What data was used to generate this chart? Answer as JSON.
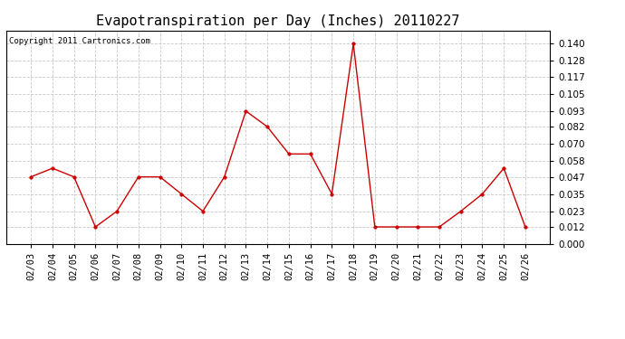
{
  "title": "Evapotranspiration per Day (Inches) 20110227",
  "copyright": "Copyright 2011 Cartronics.com",
  "dates": [
    "02/03",
    "02/04",
    "02/05",
    "02/06",
    "02/07",
    "02/08",
    "02/09",
    "02/10",
    "02/11",
    "02/12",
    "02/13",
    "02/14",
    "02/15",
    "02/16",
    "02/17",
    "02/18",
    "02/19",
    "02/20",
    "02/21",
    "02/22",
    "02/23",
    "02/24",
    "02/25",
    "02/26"
  ],
  "values": [
    0.047,
    0.053,
    0.047,
    0.012,
    0.023,
    0.047,
    0.047,
    0.035,
    0.023,
    0.047,
    0.093,
    0.082,
    0.063,
    0.063,
    0.035,
    0.14,
    0.012,
    0.012,
    0.012,
    0.012,
    0.023,
    0.035,
    0.053,
    0.012
  ],
  "line_color": "#cc0000",
  "marker": "o",
  "marker_size": 2.5,
  "ylim": [
    0.0,
    0.1493
  ],
  "yticks": [
    0.0,
    0.012,
    0.023,
    0.035,
    0.047,
    0.058,
    0.07,
    0.082,
    0.093,
    0.105,
    0.117,
    0.128,
    0.14
  ],
  "background_color": "#ffffff",
  "grid_color": "#c8c8c8",
  "title_fontsize": 11,
  "copyright_fontsize": 6.5,
  "tick_fontsize": 7.5
}
